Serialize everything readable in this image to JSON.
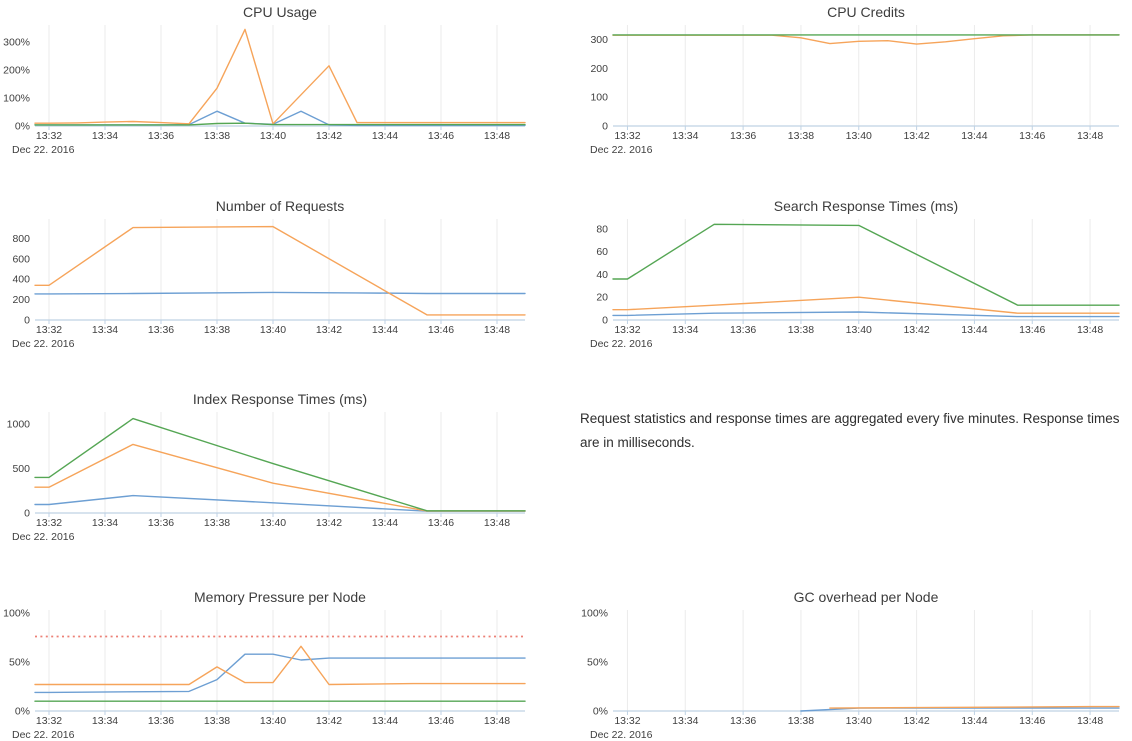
{
  "colors": {
    "blue": "#6d9fd3",
    "orange": "#f6a45a",
    "green": "#55a654",
    "red_threshold": "#ec8076",
    "axis": "#bfd2e4",
    "grid": "#ebebeb",
    "label": "#3f3f3f",
    "title": "#3d3d3d"
  },
  "x_axis": {
    "tick_labels": [
      "13:32",
      "13:34",
      "13:36",
      "13:38",
      "13:40",
      "13:42",
      "13:44",
      "13:46",
      "13:48"
    ],
    "tick_minutes": [
      0,
      2,
      4,
      6,
      8,
      10,
      12,
      14,
      16
    ],
    "minutes_origin": "13:32",
    "date_label": "Dec 22. 2016"
  },
  "note": {
    "text": "Request statistics and response times are aggregated every five minutes. Response times are in milliseconds."
  },
  "chart_data": [
    {
      "id": "cpu-usage",
      "type": "line",
      "title": "CPU Usage",
      "ylim": [
        0,
        350
      ],
      "y_ticks": [
        {
          "value": 0,
          "label": "0%"
        },
        {
          "value": 100,
          "label": "100%"
        },
        {
          "value": 200,
          "label": "200%"
        },
        {
          "value": 300,
          "label": "300%"
        }
      ],
      "series": [
        {
          "name": "blue",
          "color": "blue",
          "points": [
            [
              0,
              4
            ],
            [
              2,
              4
            ],
            [
              4,
              4
            ],
            [
              5,
              5
            ],
            [
              6,
              53
            ],
            [
              7,
              10
            ],
            [
              8,
              6
            ],
            [
              9,
              53
            ],
            [
              10,
              4
            ],
            [
              11,
              2
            ],
            [
              13,
              2
            ],
            [
              16,
              2
            ]
          ]
        },
        {
          "name": "orange",
          "color": "orange",
          "points": [
            [
              0,
              10
            ],
            [
              1,
              11
            ],
            [
              2,
              14
            ],
            [
              3,
              16
            ],
            [
              4,
              12
            ],
            [
              5,
              8
            ],
            [
              6,
              135
            ],
            [
              7,
              345
            ],
            [
              8,
              8
            ],
            [
              10,
              215
            ],
            [
              11,
              12
            ],
            [
              13,
              12
            ],
            [
              16,
              12
            ]
          ]
        },
        {
          "name": "green",
          "color": "green",
          "points": [
            [
              0,
              4
            ],
            [
              5,
              4
            ],
            [
              6,
              9
            ],
            [
              7,
              10
            ],
            [
              8,
              5
            ],
            [
              13,
              5
            ],
            [
              16,
              5
            ]
          ]
        }
      ]
    },
    {
      "id": "cpu-credits",
      "type": "line",
      "title": "CPU Credits",
      "ylim": [
        0,
        340
      ],
      "y_ticks": [
        {
          "value": 0,
          "label": "0"
        },
        {
          "value": 100,
          "label": "100"
        },
        {
          "value": 200,
          "label": "200"
        },
        {
          "value": 300,
          "label": "300"
        }
      ],
      "series": [
        {
          "name": "orange",
          "color": "orange",
          "points": [
            [
              0,
              315
            ],
            [
              5,
              315
            ],
            [
              6,
              306
            ],
            [
              7,
              286
            ],
            [
              8,
              294
            ],
            [
              9,
              296
            ],
            [
              10,
              284
            ],
            [
              11,
              292
            ],
            [
              12,
              303
            ],
            [
              13,
              313
            ],
            [
              14,
              316
            ],
            [
              16,
              316
            ]
          ]
        },
        {
          "name": "green",
          "color": "green",
          "points": [
            [
              0,
              316
            ],
            [
              16,
              316
            ]
          ]
        }
      ]
    },
    {
      "id": "number-of-requests",
      "type": "line",
      "title": "Number of Requests",
      "ylim": [
        0,
        960
      ],
      "y_ticks": [
        {
          "value": 0,
          "label": "0"
        },
        {
          "value": 200,
          "label": "200"
        },
        {
          "value": 400,
          "label": "400"
        },
        {
          "value": 600,
          "label": "600"
        },
        {
          "value": 800,
          "label": "800"
        }
      ],
      "series": [
        {
          "name": "blue",
          "color": "blue",
          "points": [
            [
              0,
              256
            ],
            [
              3,
              260
            ],
            [
              8,
              270
            ],
            [
              11,
              265
            ],
            [
              13.5,
              260
            ],
            [
              16,
              260
            ]
          ]
        },
        {
          "name": "orange",
          "color": "orange",
          "points": [
            [
              0,
              340
            ],
            [
              3,
              905
            ],
            [
              8,
              915
            ],
            [
              13.5,
              50
            ],
            [
              16,
              50
            ]
          ]
        }
      ]
    },
    {
      "id": "search-response-times",
      "type": "line",
      "title": "Search Response Times (ms)",
      "ylim": [
        0,
        86
      ],
      "y_ticks": [
        {
          "value": 0,
          "label": "0"
        },
        {
          "value": 20,
          "label": "20"
        },
        {
          "value": 40,
          "label": "40"
        },
        {
          "value": 60,
          "label": "60"
        },
        {
          "value": 80,
          "label": "80"
        }
      ],
      "series": [
        {
          "name": "blue",
          "color": "blue",
          "points": [
            [
              0,
              4
            ],
            [
              3,
              6
            ],
            [
              8,
              7
            ],
            [
              13.5,
              3
            ],
            [
              16,
              3
            ]
          ]
        },
        {
          "name": "orange",
          "color": "orange",
          "points": [
            [
              0,
              9
            ],
            [
              3,
              13
            ],
            [
              8,
              20
            ],
            [
              13.5,
              6
            ],
            [
              16,
              6
            ]
          ]
        },
        {
          "name": "green",
          "color": "green",
          "points": [
            [
              0,
              36
            ],
            [
              3,
              84
            ],
            [
              8,
              83
            ],
            [
              13.5,
              13
            ],
            [
              16,
              13
            ]
          ]
        }
      ]
    },
    {
      "id": "index-response-times",
      "type": "line",
      "title": "Index Response Times (ms)",
      "ylim": [
        0,
        1100
      ],
      "y_ticks": [
        {
          "value": 0,
          "label": "0"
        },
        {
          "value": 500,
          "label": "500"
        },
        {
          "value": 1000,
          "label": "1000"
        }
      ],
      "series": [
        {
          "name": "blue",
          "color": "blue",
          "points": [
            [
              0,
              95
            ],
            [
              3,
              195
            ],
            [
              8,
              115
            ],
            [
              13.5,
              20
            ],
            [
              16,
              20
            ]
          ]
        },
        {
          "name": "orange",
          "color": "orange",
          "points": [
            [
              0,
              290
            ],
            [
              3,
              770
            ],
            [
              8,
              335
            ],
            [
              13.5,
              22
            ],
            [
              16,
              22
            ]
          ]
        },
        {
          "name": "green",
          "color": "green",
          "points": [
            [
              0,
              400
            ],
            [
              3,
              1060
            ],
            [
              8,
              555
            ],
            [
              13.5,
              25
            ],
            [
              16,
              25
            ]
          ]
        }
      ]
    },
    {
      "id": "memory-pressure-per-node",
      "type": "line",
      "title": "Memory Pressure per Node",
      "ylim": [
        0,
        100
      ],
      "y_ticks": [
        {
          "value": 0,
          "label": "0%"
        },
        {
          "value": 50,
          "label": "50%"
        },
        {
          "value": 100,
          "label": "100%"
        }
      ],
      "threshold": {
        "value": 76,
        "style": "dotted",
        "color": "red_threshold"
      },
      "series": [
        {
          "name": "blue",
          "color": "blue",
          "points": [
            [
              0,
              19
            ],
            [
              5,
              20
            ],
            [
              6,
              32
            ],
            [
              7,
              58
            ],
            [
              8,
              58
            ],
            [
              9,
              52
            ],
            [
              10,
              54
            ],
            [
              16,
              54
            ]
          ]
        },
        {
          "name": "orange",
          "color": "orange",
          "points": [
            [
              0,
              27
            ],
            [
              5,
              27
            ],
            [
              6,
              45
            ],
            [
              7,
              29
            ],
            [
              8,
              29
            ],
            [
              9,
              66
            ],
            [
              10,
              27
            ],
            [
              13,
              28
            ],
            [
              16,
              28
            ]
          ]
        },
        {
          "name": "green",
          "color": "green",
          "points": [
            [
              0,
              10
            ],
            [
              16,
              10
            ]
          ]
        }
      ]
    },
    {
      "id": "gc-overhead-per-node",
      "type": "line",
      "title": "GC overhead per Node",
      "ylim": [
        0,
        100
      ],
      "y_ticks": [
        {
          "value": 0,
          "label": "0%"
        },
        {
          "value": 50,
          "label": "50%"
        },
        {
          "value": 100,
          "label": "100%"
        }
      ],
      "series": [
        {
          "name": "blue",
          "color": "blue",
          "points": [
            [
              6,
              0
            ],
            [
              8,
              3
            ],
            [
              16,
              3
            ]
          ]
        },
        {
          "name": "orange",
          "color": "orange",
          "points": [
            [
              7,
              3
            ],
            [
              10,
              3.5
            ],
            [
              16,
              4.5
            ]
          ]
        }
      ]
    }
  ]
}
